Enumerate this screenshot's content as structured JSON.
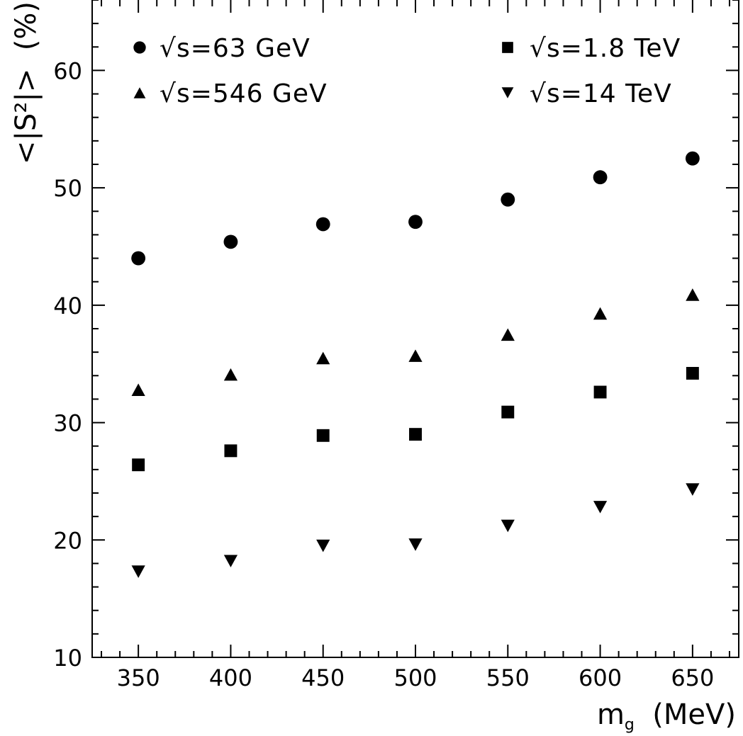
{
  "chart_data": {
    "type": "scatter",
    "xlabel_main": "m",
    "xlabel_sub": "g",
    "xlabel_unit": "(MeV)",
    "ylabel": "<|S²|>  (%)",
    "xlim": [
      325,
      675
    ],
    "ylim": [
      10,
      66
    ],
    "xticks": [
      350,
      400,
      450,
      500,
      550,
      600,
      650
    ],
    "yticks": [
      10,
      20,
      30,
      40,
      50,
      60
    ],
    "grid": false,
    "legend_position": "top",
    "x": [
      350,
      400,
      450,
      500,
      550,
      600,
      650
    ],
    "series": [
      {
        "name": "√s=63 GeV",
        "marker": "circle",
        "values": [
          44.0,
          45.4,
          46.9,
          47.1,
          49.0,
          50.9,
          52.5
        ]
      },
      {
        "name": "√s=546 GeV",
        "marker": "triangle-up",
        "values": [
          32.8,
          34.1,
          35.5,
          35.7,
          37.5,
          39.3,
          40.9
        ]
      },
      {
        "name": "√s=1.8 TeV",
        "marker": "square",
        "values": [
          26.4,
          27.6,
          28.9,
          29.0,
          30.9,
          32.6,
          34.2
        ]
      },
      {
        "name": "√s=14 TeV",
        "marker": "triangle-down",
        "values": [
          17.3,
          18.2,
          19.5,
          19.6,
          21.2,
          22.8,
          24.3
        ]
      }
    ]
  }
}
